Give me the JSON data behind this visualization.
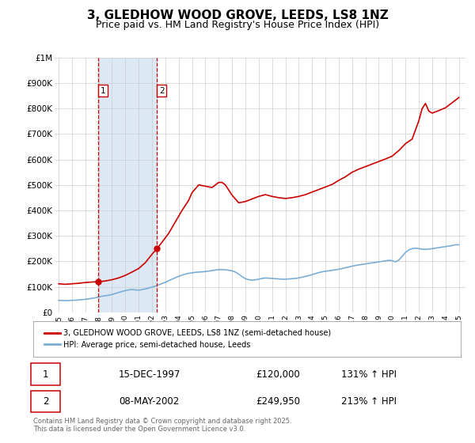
{
  "title": "3, GLEDHOW WOOD GROVE, LEEDS, LS8 1NZ",
  "subtitle": "Price paid vs. HM Land Registry's House Price Index (HPI)",
  "title_fontsize": 11,
  "subtitle_fontsize": 9,
  "background_color": "#ffffff",
  "plot_bg_color": "#ffffff",
  "grid_color": "#cccccc",
  "ylim": [
    0,
    1000000
  ],
  "yticks": [
    0,
    100000,
    200000,
    300000,
    400000,
    500000,
    600000,
    700000,
    800000,
    900000,
    1000000
  ],
  "ytick_labels": [
    "£0",
    "£100K",
    "£200K",
    "£300K",
    "£400K",
    "£500K",
    "£600K",
    "£700K",
    "£800K",
    "£900K",
    "£1M"
  ],
  "xlim_start": 1994.7,
  "xlim_end": 2025.5,
  "xticks": [
    1995,
    1996,
    1997,
    1998,
    1999,
    2000,
    2001,
    2002,
    2003,
    2004,
    2005,
    2006,
    2007,
    2008,
    2009,
    2010,
    2011,
    2012,
    2013,
    2014,
    2015,
    2016,
    2017,
    2018,
    2019,
    2020,
    2021,
    2022,
    2023,
    2024,
    2025
  ],
  "sale1_x": 1997.96,
  "sale1_y": 120000,
  "sale2_x": 2002.37,
  "sale2_y": 249950,
  "sale_color": "#cc0000",
  "vline_color": "#cc0000",
  "shade_color": "#dce9f5",
  "hpi_color": "#7aaed6",
  "price_color": "#cc0000",
  "legend_label_price": "3, GLEDHOW WOOD GROVE, LEEDS, LS8 1NZ (semi-detached house)",
  "legend_label_hpi": "HPI: Average price, semi-detached house, Leeds",
  "table_row1": [
    "1",
    "15-DEC-1997",
    "£120,000",
    "131% ↑ HPI"
  ],
  "table_row2": [
    "2",
    "08-MAY-2002",
    "£249,950",
    "213% ↑ HPI"
  ],
  "footer": "Contains HM Land Registry data © Crown copyright and database right 2025.\nThis data is licensed under the Open Government Licence v3.0.",
  "hpi_data_x": [
    1995.0,
    1995.25,
    1995.5,
    1995.75,
    1996.0,
    1996.25,
    1996.5,
    1996.75,
    1997.0,
    1997.25,
    1997.5,
    1997.75,
    1998.0,
    1998.25,
    1998.5,
    1998.75,
    1999.0,
    1999.25,
    1999.5,
    1999.75,
    2000.0,
    2000.25,
    2000.5,
    2000.75,
    2001.0,
    2001.25,
    2001.5,
    2001.75,
    2002.0,
    2002.25,
    2002.5,
    2002.75,
    2003.0,
    2003.25,
    2003.5,
    2003.75,
    2004.0,
    2004.25,
    2004.5,
    2004.75,
    2005.0,
    2005.25,
    2005.5,
    2005.75,
    2006.0,
    2006.25,
    2006.5,
    2006.75,
    2007.0,
    2007.25,
    2007.5,
    2007.75,
    2008.0,
    2008.25,
    2008.5,
    2008.75,
    2009.0,
    2009.25,
    2009.5,
    2009.75,
    2010.0,
    2010.25,
    2010.5,
    2010.75,
    2011.0,
    2011.25,
    2011.5,
    2011.75,
    2012.0,
    2012.25,
    2012.5,
    2012.75,
    2013.0,
    2013.25,
    2013.5,
    2013.75,
    2014.0,
    2014.25,
    2014.5,
    2014.75,
    2015.0,
    2015.25,
    2015.5,
    2015.75,
    2016.0,
    2016.25,
    2016.5,
    2016.75,
    2017.0,
    2017.25,
    2017.5,
    2017.75,
    2018.0,
    2018.25,
    2018.5,
    2018.75,
    2019.0,
    2019.25,
    2019.5,
    2019.75,
    2020.0,
    2020.25,
    2020.5,
    2020.75,
    2021.0,
    2021.25,
    2021.5,
    2021.75,
    2022.0,
    2022.25,
    2022.5,
    2022.75,
    2023.0,
    2023.25,
    2023.5,
    2023.75,
    2024.0,
    2024.25,
    2024.5,
    2024.75,
    2025.0
  ],
  "hpi_data_y": [
    47000,
    46500,
    46000,
    46500,
    47000,
    47500,
    48500,
    50000,
    51000,
    53000,
    55000,
    57000,
    60000,
    63000,
    65000,
    67000,
    70000,
    74000,
    78000,
    82000,
    85000,
    88000,
    90000,
    88000,
    87000,
    89000,
    92000,
    95000,
    99000,
    103000,
    108000,
    113000,
    118000,
    124000,
    130000,
    136000,
    141000,
    146000,
    150000,
    153000,
    155000,
    157000,
    158000,
    159000,
    160000,
    162000,
    164000,
    166000,
    168000,
    168000,
    167000,
    165000,
    163000,
    158000,
    150000,
    140000,
    132000,
    128000,
    126000,
    128000,
    130000,
    133000,
    135000,
    134000,
    133000,
    132000,
    131000,
    130000,
    130000,
    131000,
    132000,
    133000,
    135000,
    138000,
    141000,
    144000,
    148000,
    152000,
    156000,
    159000,
    161000,
    163000,
    165000,
    167000,
    169000,
    172000,
    175000,
    178000,
    181000,
    184000,
    186000,
    188000,
    190000,
    192000,
    194000,
    196000,
    198000,
    200000,
    202000,
    204000,
    203000,
    198000,
    205000,
    220000,
    235000,
    245000,
    250000,
    252000,
    250000,
    248000,
    247000,
    248000,
    250000,
    252000,
    254000,
    256000,
    258000,
    260000,
    262000,
    265000,
    265000
  ],
  "price_data_x": [
    1995.0,
    1995.5,
    1996.0,
    1996.5,
    1997.0,
    1997.5,
    1997.96,
    1998.5,
    1999.0,
    1999.5,
    2000.0,
    2000.5,
    2001.0,
    2001.5,
    2002.0,
    2002.37,
    2002.75,
    2003.25,
    2003.75,
    2004.25,
    2004.75,
    2005.0,
    2005.5,
    2006.0,
    2006.5,
    2007.0,
    2007.25,
    2007.5,
    2007.75,
    2008.0,
    2008.5,
    2009.0,
    2009.5,
    2010.0,
    2010.5,
    2011.0,
    2011.5,
    2012.0,
    2012.5,
    2013.0,
    2013.5,
    2014.0,
    2014.5,
    2015.0,
    2015.5,
    2016.0,
    2016.5,
    2017.0,
    2017.5,
    2018.0,
    2018.5,
    2019.0,
    2019.5,
    2020.0,
    2020.5,
    2021.0,
    2021.5,
    2022.0,
    2022.25,
    2022.5,
    2022.75,
    2023.0,
    2023.5,
    2024.0,
    2024.5,
    2025.0
  ],
  "price_data_y": [
    112000,
    110000,
    112000,
    114000,
    117000,
    119000,
    120000,
    123000,
    128000,
    135000,
    145000,
    158000,
    172000,
    195000,
    228000,
    249950,
    275000,
    310000,
    355000,
    400000,
    440000,
    470000,
    500000,
    495000,
    490000,
    510000,
    510000,
    500000,
    480000,
    460000,
    430000,
    435000,
    445000,
    455000,
    462000,
    455000,
    450000,
    447000,
    450000,
    455000,
    462000,
    472000,
    482000,
    492000,
    502000,
    518000,
    532000,
    550000,
    562000,
    572000,
    582000,
    592000,
    602000,
    613000,
    635000,
    662000,
    680000,
    752000,
    800000,
    820000,
    790000,
    782000,
    792000,
    803000,
    823000,
    843000
  ]
}
